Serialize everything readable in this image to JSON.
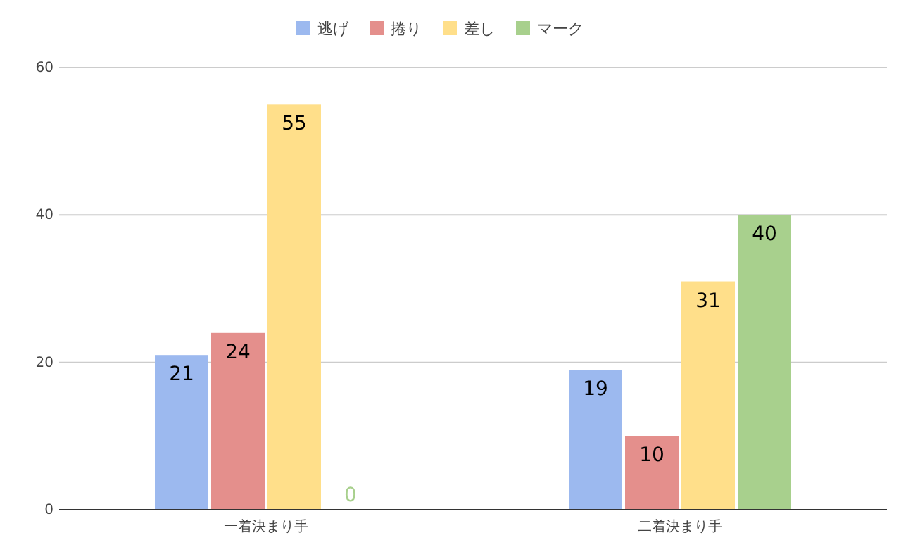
{
  "chart_data": {
    "type": "bar",
    "categories": [
      "一着決まり手",
      "二着決まり手"
    ],
    "series": [
      {
        "name": "逃げ",
        "color": "#9cb9ef",
        "values": [
          21,
          19
        ]
      },
      {
        "name": "捲り",
        "color": "#e48f8c",
        "values": [
          24,
          10
        ]
      },
      {
        "name": "差し",
        "color": "#ffdf8a",
        "values": [
          55,
          31
        ]
      },
      {
        "name": "マーク",
        "color": "#a8d08d",
        "values": [
          0,
          40
        ]
      }
    ],
    "ylim": [
      0,
      60
    ],
    "yticks": [
      0,
      20,
      40,
      60
    ],
    "grid": "y",
    "legend": "top",
    "data_labels": true
  }
}
